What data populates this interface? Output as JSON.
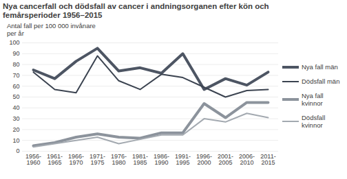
{
  "chart_data": {
    "type": "line",
    "title": "Nya cancerfall och dödsfall av cancer i andningsorganen efter kön och femårsperioder 1956–2015",
    "y_label": "Antal fall per 100 000 invånare per år",
    "categories": [
      "1956-1960",
      "1961-1965",
      "1966-1970",
      "1971-1975",
      "1976-1980",
      "1981-1985",
      "1986-1990",
      "1991-1995",
      "1996-2000",
      "2001-2005",
      "2006-2010",
      "2011-2015"
    ],
    "series": [
      {
        "name": "Nya fall män",
        "color": "#4d5563",
        "line_style": "thick",
        "values": [
          75,
          67,
          83,
          95,
          74,
          77,
          72,
          90,
          57,
          67,
          61,
          73
        ]
      },
      {
        "name": "Dödsfall män",
        "color": "#3b4350",
        "line_style": "thin",
        "values": [
          73,
          57,
          54,
          88,
          65,
          57,
          71,
          68,
          59,
          50,
          56,
          57
        ]
      },
      {
        "name": "Nya fall kvinnor",
        "color": "#8c939c",
        "line_style": "thick",
        "values": [
          5,
          8,
          13,
          16,
          13,
          12,
          17,
          17,
          44,
          31,
          45,
          45
        ]
      },
      {
        "name": "Dödsfall kvinnor",
        "color": "#a3a9b0",
        "line_style": "thin",
        "values": [
          4,
          7,
          10,
          13,
          7,
          11,
          15,
          15,
          30,
          27,
          35,
          31
        ]
      }
    ],
    "ylim": [
      0,
      100
    ],
    "yticks": [
      0,
      10,
      20,
      30,
      40,
      50,
      60,
      70,
      80,
      90,
      100
    ],
    "grid": true,
    "legend": "right"
  }
}
